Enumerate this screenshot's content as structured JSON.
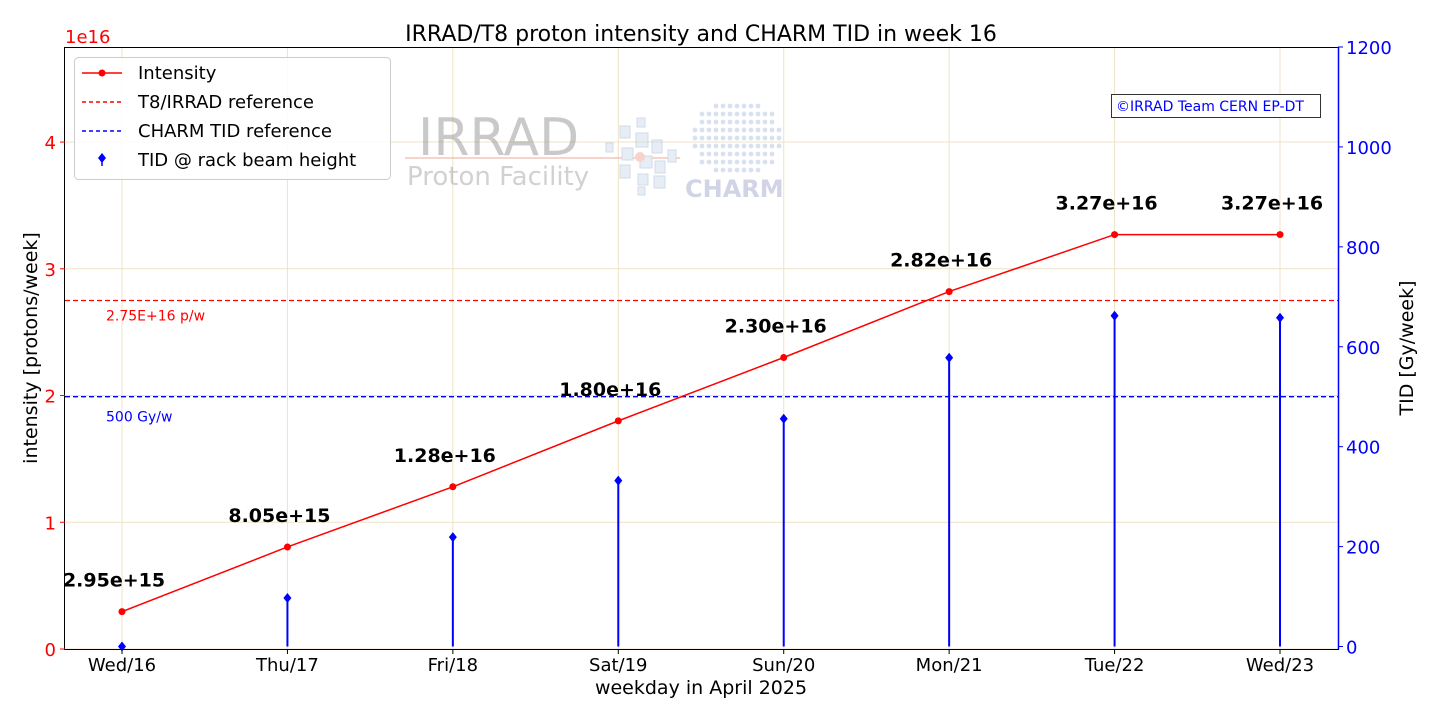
{
  "chart_data": {
    "type": "line",
    "title": "IRRAD/T8 proton intensity and CHARM TID in week 16",
    "xlabel": "weekday in April 2025",
    "ylabel_left": "intensity [protons/week]",
    "ylabel_right": "TID [Gy/week]",
    "left_axis_multiplier": "1e16",
    "categories": [
      "Wed/16",
      "Thu/17",
      "Fri/18",
      "Sat/19",
      "Sun/20",
      "Mon/21",
      "Tue/22",
      "Wed/23"
    ],
    "ylim_left": [
      0,
      4.75e+16
    ],
    "ylim_right": [
      -5,
      1200
    ],
    "left_ticks": [
      "0",
      "1",
      "2",
      "3",
      "4"
    ],
    "right_ticks": [
      "0",
      "200",
      "400",
      "600",
      "800",
      "1000",
      "1200"
    ],
    "grid": true,
    "legend_position": "top-left",
    "series": [
      {
        "name": "Intensity",
        "axis": "left",
        "color": "#ff0000",
        "values": [
          2950000000000000.0,
          8050000000000000.0,
          1.28e+16,
          1.8e+16,
          2.3e+16,
          2.82e+16,
          3.27e+16,
          3.27e+16
        ],
        "labels": [
          "2.95e+15",
          "8.05e+15",
          "1.28e+16",
          "1.80e+16",
          "2.30e+16",
          "2.82e+16",
          "3.27e+16",
          "3.27e+16"
        ]
      },
      {
        "name": "TID @ rack beam height",
        "axis": "right",
        "color": "#0000ff",
        "values": [
          0,
          97,
          219,
          332,
          456,
          578,
          662,
          658
        ]
      }
    ],
    "reference_lines": [
      {
        "name": "T8/IRRAD reference",
        "axis": "left",
        "value": 2.75e+16,
        "color": "#ff0000",
        "label": "2.75E+16 p/w"
      },
      {
        "name": "CHARM TID reference",
        "axis": "right",
        "value": 500,
        "color": "#0000ff",
        "label": "500 Gy/w"
      }
    ],
    "annotations": [
      "©IRRAD Team CERN EP-DT"
    ],
    "watermark": {
      "irrad_text": "IRRAD",
      "irrad_subtext": "Proton Facility",
      "charm_text": "CHARM"
    }
  }
}
